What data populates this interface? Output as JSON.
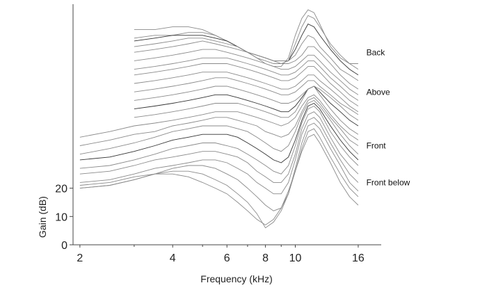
{
  "chart_data": {
    "type": "line",
    "title": "",
    "xlabel": "Frequency (kHz)",
    "ylabel": "Gain (dB)",
    "x_scale": "log",
    "x_ticks": [
      2,
      4,
      6,
      8,
      10,
      16
    ],
    "x_tick_labels": [
      "2",
      "4",
      "6",
      "8",
      "10",
      "16"
    ],
    "x_minor_ticks": [
      3,
      5,
      7,
      9
    ],
    "xlim": [
      1.9,
      19
    ],
    "y_ticks": [
      0,
      10,
      20
    ],
    "y_tick_labels": [
      "0",
      "10",
      "20"
    ],
    "ylim": [
      0,
      85
    ],
    "grid": false,
    "legend": "none",
    "curve_color": "#8a8a8a",
    "annotations": [
      {
        "text": "Back",
        "x": 17,
        "y": 67
      },
      {
        "text": "Above",
        "x": 17,
        "y": 53
      },
      {
        "text": "Front",
        "x": 17,
        "y": 34
      },
      {
        "text": "Front below",
        "x": 17,
        "y": 21
      }
    ],
    "x": [
      2,
      2.5,
      3,
      3.5,
      4,
      4.5,
      5,
      5.5,
      6,
      6.5,
      7,
      7.5,
      8,
      8.5,
      9,
      9.5,
      10,
      10.5,
      11,
      11.5,
      12,
      13,
      14,
      15,
      16
    ],
    "series": [
      {
        "dark": false,
        "values": [
          null,
          null,
          76.0,
          76.0,
          77.0,
          77.0,
          76.0,
          74.0,
          72.0,
          70.0,
          68.0,
          66.0,
          64.0,
          63.0,
          63.0,
          66.0,
          74.0,
          80.0,
          83.0,
          82.0,
          78.0,
          70.0,
          66.0,
          64.0,
          64.0
        ]
      },
      {
        "dark": false,
        "values": [
          null,
          null,
          73.0,
          74.0,
          74.0,
          75.0,
          75.0,
          74.0,
          72.0,
          70.0,
          68.0,
          66.0,
          65.0,
          64.0,
          64.0,
          65.0,
          71.0,
          77.0,
          81.0,
          80.0,
          77.0,
          71.0,
          67.0,
          64.0,
          62.0
        ]
      },
      {
        "dark": true,
        "values": [
          null,
          null,
          72.0,
          73.0,
          74.0,
          74.0,
          74.0,
          73.0,
          72.0,
          70.0,
          68.0,
          67.0,
          66.0,
          65.0,
          65.0,
          65.0,
          69.0,
          74.0,
          78.0,
          77.0,
          74.0,
          69.0,
          65.0,
          62.0,
          60.0
        ]
      },
      {
        "dark": false,
        "values": [
          null,
          null,
          70.0,
          71.0,
          72.0,
          73.0,
          73.0,
          72.0,
          71.0,
          70.0,
          68.0,
          67.0,
          66.0,
          65.0,
          65.0,
          65.0,
          67.0,
          71.0,
          74.0,
          73.0,
          70.0,
          66.0,
          62.0,
          60.0,
          58.0
        ]
      },
      {
        "dark": false,
        "values": [
          null,
          null,
          68.0,
          69.0,
          70.0,
          71.0,
          72.0,
          71.0,
          70.0,
          69.0,
          68.0,
          67.0,
          66.0,
          65.0,
          64.0,
          64.0,
          65.0,
          67.0,
          70.0,
          70.0,
          68.0,
          64.0,
          60.0,
          57.0,
          55.0
        ]
      },
      {
        "dark": false,
        "values": [
          null,
          null,
          65.0,
          66.0,
          67.0,
          68.0,
          69.0,
          69.0,
          68.0,
          67.0,
          66.0,
          65.0,
          64.0,
          63.0,
          62.0,
          62.0,
          63.0,
          65.0,
          67.0,
          67.0,
          65.0,
          61.0,
          58.0,
          55.0,
          53.0
        ]
      },
      {
        "dark": false,
        "values": [
          null,
          null,
          62.0,
          63.0,
          64.0,
          65.0,
          66.0,
          66.0,
          66.0,
          65.0,
          64.0,
          63.0,
          62.0,
          61.0,
          60.0,
          60.0,
          61.0,
          63.0,
          65.0,
          65.0,
          63.0,
          59.0,
          56.0,
          53.0,
          51.0
        ]
      },
      {
        "dark": false,
        "values": [
          null,
          null,
          60.0,
          61.0,
          62.0,
          63.0,
          64.0,
          64.0,
          64.0,
          63.0,
          62.0,
          61.0,
          60.0,
          59.0,
          58.0,
          58.0,
          59.0,
          61.0,
          63.0,
          63.0,
          61.0,
          57.0,
          54.0,
          51.0,
          49.0
        ]
      },
      {
        "dark": false,
        "values": [
          null,
          null,
          57.0,
          58.0,
          59.0,
          60.0,
          61.0,
          61.0,
          61.0,
          60.0,
          59.0,
          58.0,
          57.0,
          56.0,
          55.0,
          55.0,
          56.0,
          58.0,
          60.0,
          60.0,
          58.0,
          55.0,
          52.0,
          49.0,
          47.0
        ]
      },
      {
        "dark": false,
        "values": [
          null,
          null,
          54.0,
          55.0,
          56.0,
          57.0,
          58.0,
          59.0,
          59.0,
          58.0,
          57.0,
          56.0,
          55.0,
          54.0,
          53.0,
          53.0,
          54.0,
          56.0,
          58.0,
          58.0,
          56.0,
          53.0,
          50.0,
          48.0,
          46.0
        ]
      },
      {
        "dark": false,
        "values": [
          null,
          null,
          51.0,
          52.0,
          53.0,
          54.0,
          55.0,
          56.0,
          56.0,
          55.0,
          54.0,
          53.0,
          52.0,
          51.0,
          50.0,
          50.0,
          51.0,
          53.0,
          55.0,
          56.0,
          55.0,
          52.0,
          49.0,
          46.0,
          44.0
        ]
      },
      {
        "dark": true,
        "values": [
          null,
          null,
          48.0,
          49.0,
          50.0,
          51.0,
          52.0,
          53.0,
          53.0,
          52.0,
          51.0,
          50.0,
          49.0,
          48.0,
          47.0,
          47.0,
          49.0,
          52.0,
          55.0,
          56.0,
          54.0,
          50.0,
          47.0,
          44.0,
          42.0
        ]
      },
      {
        "dark": false,
        "values": [
          null,
          null,
          45.0,
          46.0,
          47.0,
          48.0,
          49.0,
          50.0,
          50.0,
          50.0,
          49.0,
          48.0,
          47.0,
          46.0,
          45.0,
          45.0,
          47.0,
          51.0,
          55.0,
          56.0,
          53.0,
          48.0,
          44.0,
          41.0,
          39.0
        ]
      },
      {
        "dark": false,
        "values": [
          38.0,
          40.0,
          42.0,
          43.0,
          44.0,
          45.0,
          46.0,
          47.0,
          47.0,
          47.0,
          46.0,
          45.0,
          44.0,
          43.0,
          42.0,
          43.0,
          45.0,
          49.0,
          52.0,
          53.0,
          51.0,
          46.0,
          42.0,
          39.0,
          37.0
        ]
      },
      {
        "dark": false,
        "values": [
          35.0,
          37.0,
          39.0,
          40.0,
          42.0,
          43.0,
          44.0,
          45.0,
          45.0,
          44.0,
          43.0,
          42.0,
          40.0,
          39.0,
          38.0,
          39.0,
          42.0,
          47.0,
          51.0,
          52.0,
          50.0,
          45.0,
          41.0,
          37.0,
          35.0
        ]
      },
      {
        "dark": false,
        "values": [
          32.0,
          34.0,
          36.0,
          38.0,
          40.0,
          41.0,
          42.0,
          42.0,
          42.0,
          41.0,
          40.0,
          38.0,
          36.0,
          34.0,
          33.0,
          35.0,
          40.0,
          46.0,
          50.0,
          51.0,
          49.0,
          44.0,
          39.0,
          35.0,
          32.0
        ]
      },
      {
        "dark": true,
        "values": [
          30.0,
          31.0,
          33.0,
          35.0,
          37.0,
          38.0,
          39.0,
          39.0,
          39.0,
          38.0,
          36.0,
          34.0,
          32.0,
          30.0,
          29.0,
          31.0,
          37.0,
          44.0,
          49.0,
          50.0,
          48.0,
          42.0,
          37.0,
          33.0,
          30.0
        ]
      },
      {
        "dark": false,
        "values": [
          27.0,
          28.0,
          30.0,
          32.0,
          34.0,
          35.0,
          36.0,
          36.0,
          35.0,
          34.0,
          32.0,
          30.0,
          28.0,
          26.0,
          25.0,
          28.0,
          35.0,
          43.0,
          48.0,
          49.0,
          47.0,
          40.0,
          35.0,
          31.0,
          28.0
        ]
      },
      {
        "dark": false,
        "values": [
          25.0,
          26.0,
          28.0,
          30.0,
          31.0,
          32.0,
          33.0,
          33.0,
          32.0,
          31.0,
          29.0,
          26.0,
          24.0,
          22.0,
          22.0,
          25.0,
          32.0,
          41.0,
          46.0,
          47.0,
          45.0,
          38.0,
          32.0,
          28.0,
          25.0
        ]
      },
      {
        "dark": false,
        "values": [
          22.0,
          23.0,
          25.0,
          27.0,
          28.0,
          29.0,
          30.0,
          30.0,
          29.0,
          27.0,
          25.0,
          22.0,
          20.0,
          18.0,
          18.0,
          22.0,
          30.0,
          39.0,
          44.0,
          45.0,
          43.0,
          36.0,
          30.0,
          25.0,
          22.0
        ]
      },
      {
        "dark": false,
        "values": [
          20.0,
          21.0,
          23.0,
          25.0,
          27.0,
          28.0,
          28.0,
          27.0,
          25.0,
          23.0,
          20.0,
          17.0,
          14.0,
          12.0,
          13.0,
          18.0,
          27.0,
          36.0,
          42.0,
          43.0,
          41.0,
          34.0,
          28.0,
          22.0,
          19.0
        ]
      },
      {
        "dark": false,
        "values": [
          20.0,
          21.0,
          23.0,
          25.0,
          26.0,
          26.0,
          25.0,
          23.0,
          21.0,
          18.0,
          15.0,
          11.0,
          6.0,
          8.0,
          12.0,
          18.0,
          26.0,
          34.0,
          40.0,
          41.0,
          38.0,
          31.0,
          25.0,
          20.0,
          17.0
        ]
      },
      {
        "dark": false,
        "values": [
          21.0,
          22.0,
          24.0,
          25.0,
          25.0,
          24.0,
          22.0,
          20.0,
          18.0,
          15.0,
          12.0,
          9.0,
          7.0,
          9.0,
          13.0,
          19.0,
          26.0,
          33.0,
          38.0,
          39.0,
          36.0,
          29.0,
          22.0,
          17.0,
          14.0
        ]
      }
    ]
  }
}
